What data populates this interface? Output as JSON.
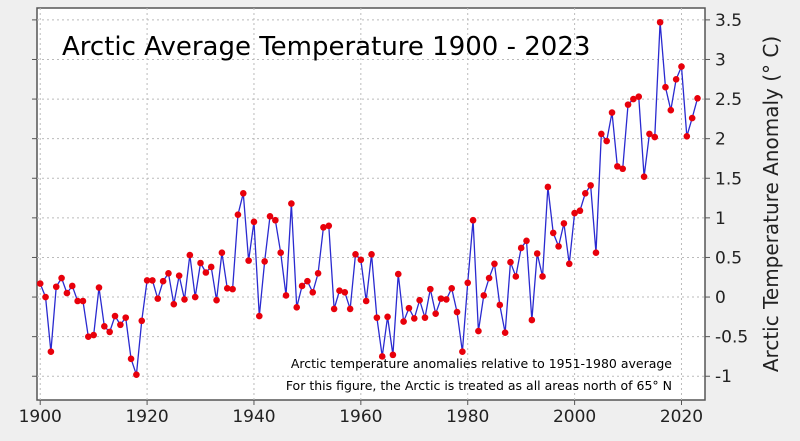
{
  "chart_data": {
    "type": "line",
    "title": "Arctic Average Temperature 1900 - 2023",
    "xlabel": "",
    "ylabel": "Arctic Temperature Anomaly (° C)",
    "annotations": [
      "Arctic temperature anomalies relative to 1951-1980 average",
      "For this figure, the Arctic is treated as all areas north of 65° N"
    ],
    "xlim": [
      1899.4,
      2024.4
    ],
    "ylim": [
      -1.3,
      3.65
    ],
    "xticks": [
      1900,
      1920,
      1940,
      1960,
      1980,
      2000,
      2020
    ],
    "yticks": [
      -1,
      -0.5,
      0,
      0.5,
      1,
      1.5,
      2,
      2.5,
      3,
      3.5
    ],
    "y_axis_side": "right",
    "grid": true,
    "line_color": "#2a2ad0",
    "marker_color": "#e8000b",
    "x_start": 1900,
    "values": [
      0.17,
      0.0,
      -0.69,
      0.13,
      0.24,
      0.05,
      0.14,
      -0.05,
      -0.05,
      -0.5,
      -0.48,
      0.12,
      -0.37,
      -0.44,
      -0.24,
      -0.35,
      -0.26,
      -0.78,
      -0.98,
      -0.3,
      0.21,
      0.21,
      -0.02,
      0.2,
      0.3,
      -0.09,
      0.27,
      -0.03,
      0.53,
      0.0,
      0.43,
      0.31,
      0.38,
      -0.04,
      0.56,
      0.11,
      0.1,
      1.04,
      1.31,
      0.46,
      0.95,
      -0.24,
      0.45,
      1.02,
      0.97,
      0.56,
      0.02,
      1.18,
      -0.13,
      0.14,
      0.2,
      0.06,
      0.3,
      0.88,
      0.9,
      -0.15,
      0.08,
      0.06,
      -0.15,
      0.54,
      0.47,
      -0.05,
      0.54,
      -0.26,
      -0.75,
      -0.25,
      -0.73,
      0.29,
      -0.31,
      -0.14,
      -0.27,
      -0.04,
      -0.26,
      0.1,
      -0.21,
      -0.02,
      -0.03,
      0.11,
      -0.19,
      -0.69,
      0.18,
      0.97,
      -0.43,
      0.02,
      0.24,
      0.42,
      -0.1,
      -0.45,
      0.44,
      0.26,
      0.62,
      0.71,
      -0.29,
      0.55,
      0.26,
      1.39,
      0.81,
      0.64,
      0.93,
      0.42,
      1.06,
      1.09,
      1.31,
      1.41,
      0.56,
      2.06,
      1.97,
      2.33,
      1.65,
      1.62,
      2.43,
      2.5,
      2.53,
      1.52,
      2.06,
      2.02,
      3.47,
      2.65,
      2.36,
      2.75,
      2.91,
      2.03,
      2.26,
      2.51
    ]
  }
}
